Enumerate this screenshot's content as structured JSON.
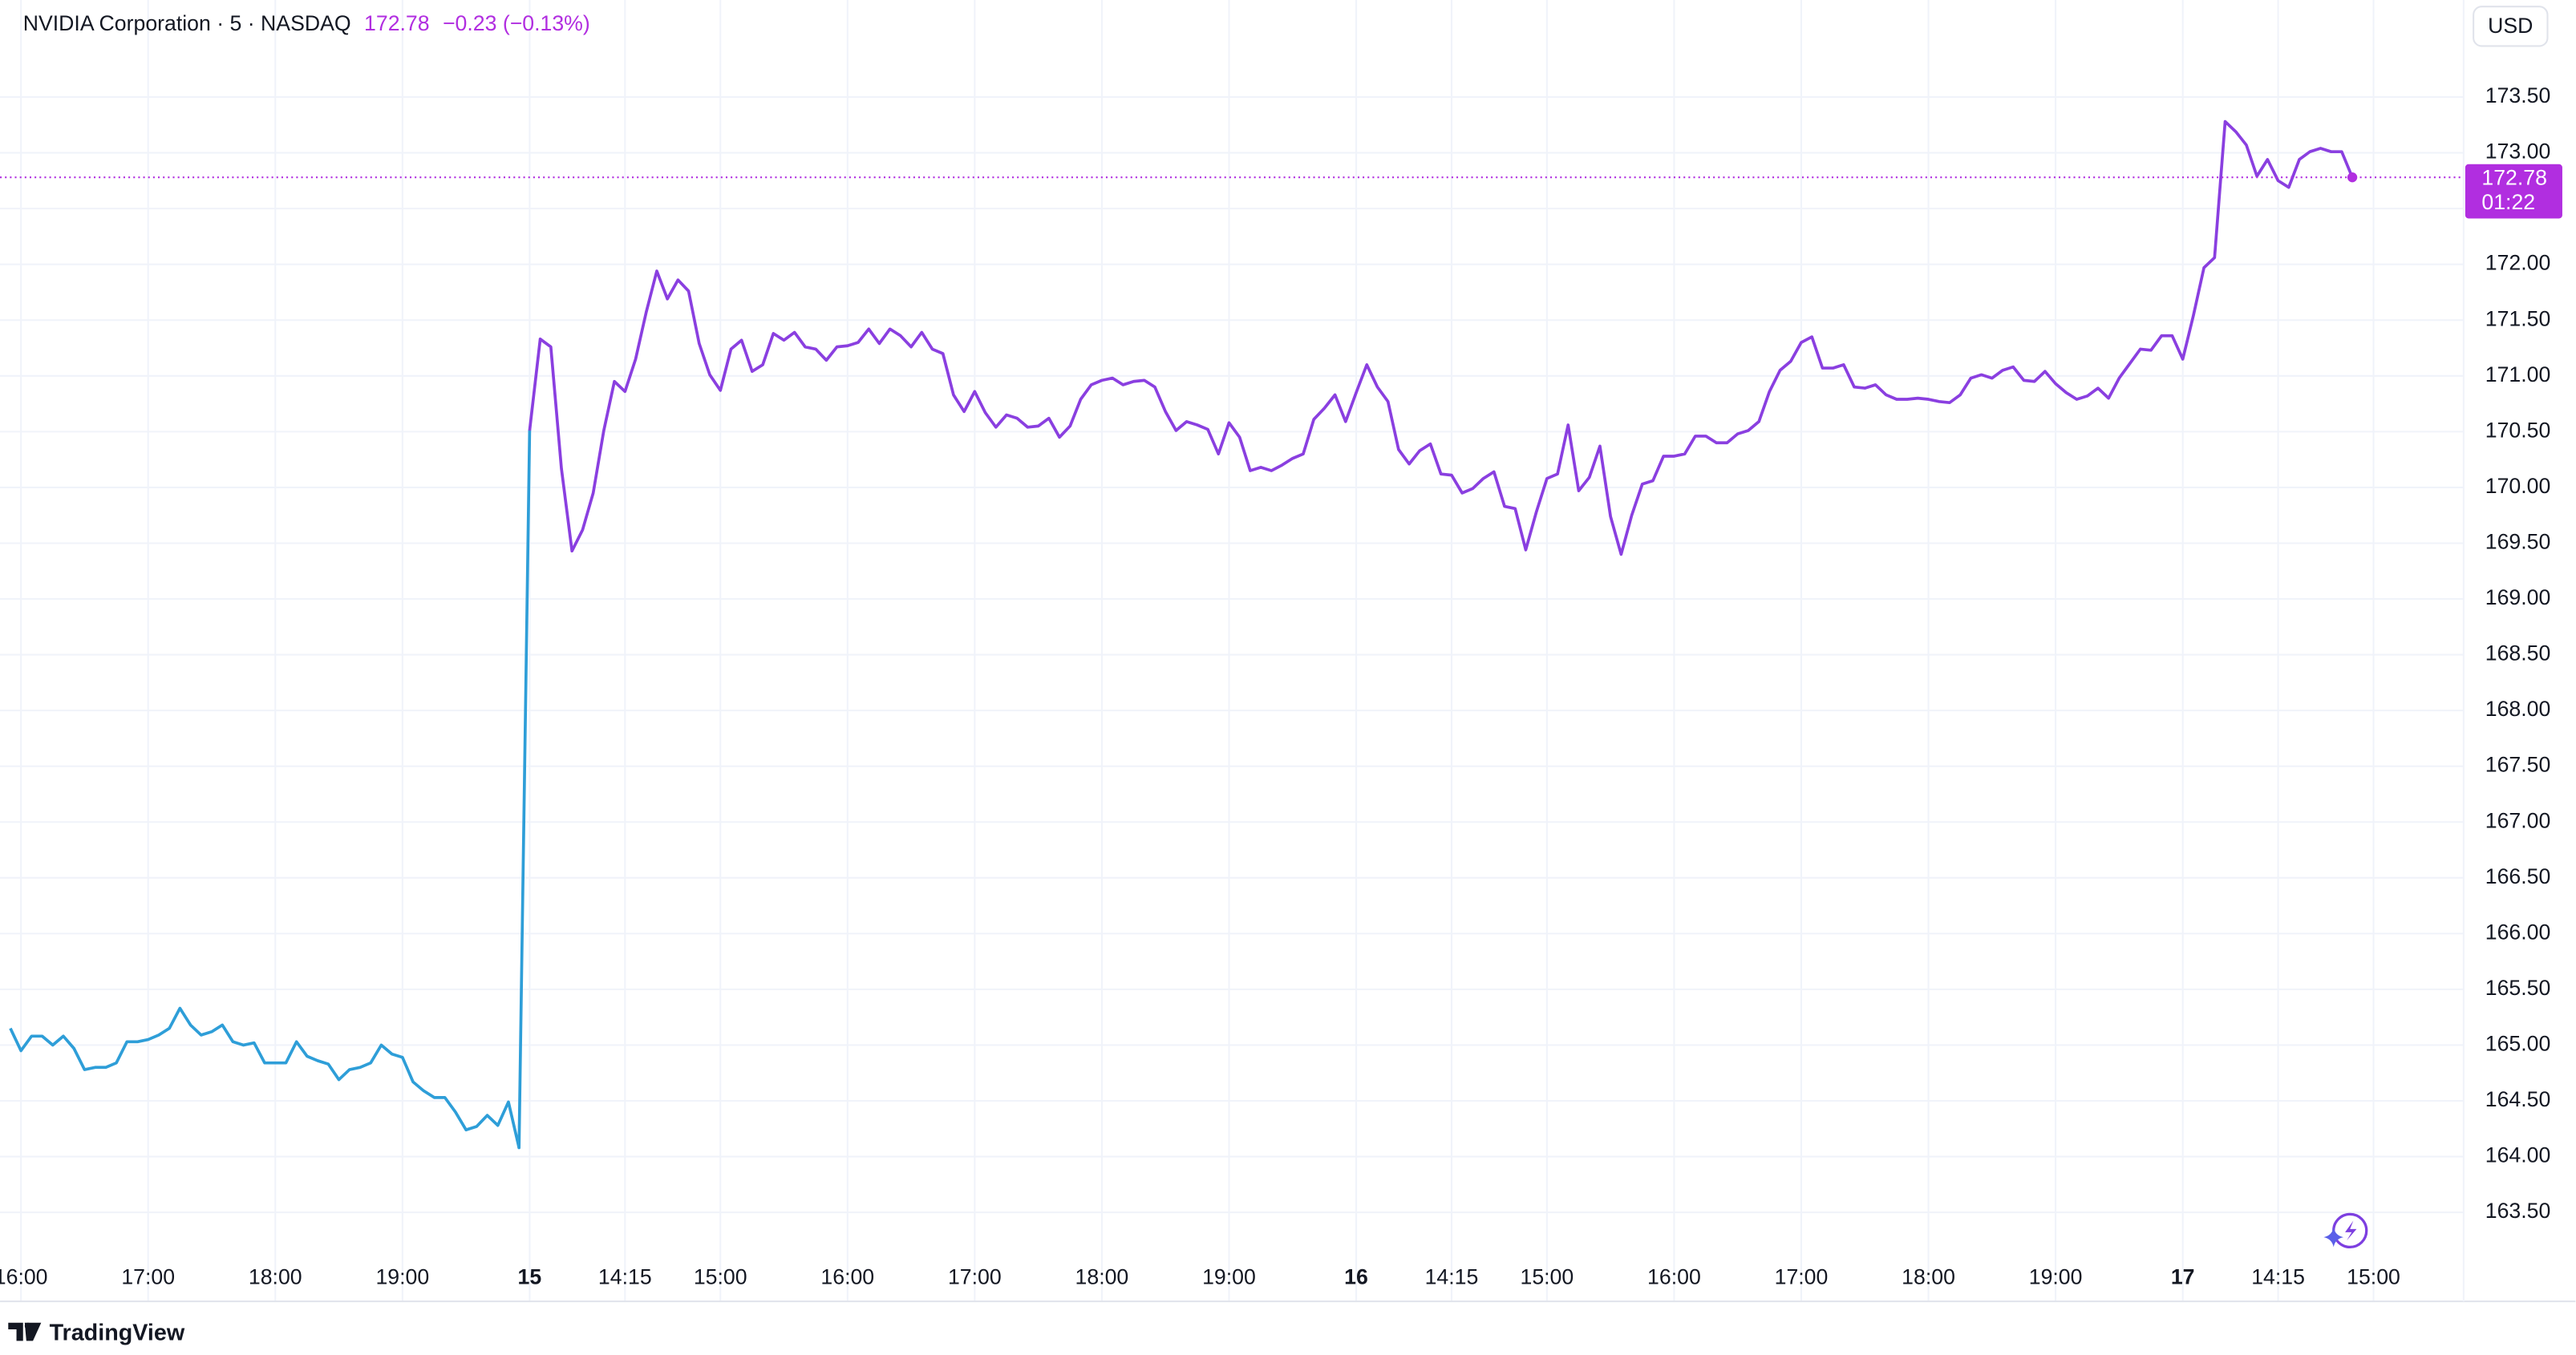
{
  "chart_data": {
    "type": "line",
    "title": "NVIDIA Corporation · 5 · NASDAQ",
    "last_price": 172.78,
    "change": "−0.23 (−0.13%)",
    "countdown": "01:22",
    "currency": "USD",
    "brand": "TradingView",
    "last_price_color": "#b12ee0",
    "grid": true,
    "xlim": [
      -0.2,
      231.5
    ],
    "ylim": [
      163.13,
      174.37
    ],
    "xticks": [
      {
        "value": 1,
        "label": "16:00"
      },
      {
        "value": 13,
        "label": "17:00"
      },
      {
        "value": 25,
        "label": "18:00"
      },
      {
        "value": 37,
        "label": "19:00"
      },
      {
        "value": 49,
        "label": "15"
      },
      {
        "value": 58,
        "label": "14:15"
      },
      {
        "value": 67,
        "label": "15:00"
      },
      {
        "value": 79,
        "label": "16:00"
      },
      {
        "value": 91,
        "label": "17:00"
      },
      {
        "value": 103,
        "label": "18:00"
      },
      {
        "value": 115,
        "label": "19:00"
      },
      {
        "value": 127,
        "label": "16"
      },
      {
        "value": 136,
        "label": "14:15"
      },
      {
        "value": 145,
        "label": "15:00"
      },
      {
        "value": 157,
        "label": "16:00"
      },
      {
        "value": 169,
        "label": "17:00"
      },
      {
        "value": 181,
        "label": "18:00"
      },
      {
        "value": 193,
        "label": "19:00"
      },
      {
        "value": 205,
        "label": "17"
      },
      {
        "value": 214,
        "label": "14:15"
      },
      {
        "value": 223,
        "label": "15:00"
      }
    ],
    "yticks": [
      {
        "value": 163.5,
        "label": "163.50"
      },
      {
        "value": 164,
        "label": "164.00"
      },
      {
        "value": 164.5,
        "label": "164.50"
      },
      {
        "value": 165,
        "label": "165.00"
      },
      {
        "value": 165.5,
        "label": "165.50"
      },
      {
        "value": 166,
        "label": "166.00"
      },
      {
        "value": 166.5,
        "label": "166.50"
      },
      {
        "value": 167,
        "label": "167.00"
      },
      {
        "value": 167.5,
        "label": "167.50"
      },
      {
        "value": 168,
        "label": "168.00"
      },
      {
        "value": 168.5,
        "label": "168.50"
      },
      {
        "value": 169,
        "label": "169.00"
      },
      {
        "value": 169.5,
        "label": "169.50"
      },
      {
        "value": 170,
        "label": "170.00"
      },
      {
        "value": 170.5,
        "label": "170.50"
      },
      {
        "value": 171,
        "label": "171.00"
      },
      {
        "value": 171.5,
        "label": "171.50"
      },
      {
        "value": 172,
        "label": "172.00"
      },
      {
        "value": 172.5,
        "label": "172.50"
      },
      {
        "value": 173,
        "label": "173.00"
      },
      {
        "value": 173.5,
        "label": "173.50"
      }
    ],
    "series": [
      {
        "color": "#2e9ed8",
        "values": [
          165.15,
          164.95,
          165.08,
          165.08,
          165.0,
          165.08,
          164.97,
          164.78,
          164.8,
          164.8,
          164.84,
          165.03,
          165.03,
          165.05,
          165.09,
          165.15,
          165.33,
          165.18,
          165.09,
          165.12,
          165.18,
          165.03,
          165.0,
          165.02,
          164.84,
          164.84,
          164.84,
          165.03,
          164.9,
          164.86,
          164.83,
          164.69,
          164.78,
          164.8,
          164.84,
          165.0,
          164.92,
          164.89,
          164.67,
          164.59,
          164.53,
          164.53,
          164.4,
          164.24,
          164.27,
          164.37,
          164.28,
          164.49,
          164.08,
          null,
          null,
          null,
          null,
          null,
          null,
          null,
          null,
          null,
          null,
          null,
          null,
          null,
          null,
          null,
          null,
          null,
          null,
          null,
          null,
          null,
          null,
          null,
          null,
          null,
          null,
          null,
          null,
          null,
          null,
          null,
          null,
          null,
          null,
          null,
          null,
          null,
          null,
          null,
          null,
          null,
          null,
          null,
          null,
          null,
          null,
          null,
          null,
          null,
          null,
          null,
          null,
          null,
          null,
          null,
          null,
          null,
          null,
          null,
          null,
          null,
          null,
          null,
          null,
          null,
          null,
          null,
          null,
          null,
          null,
          null,
          null,
          null,
          null,
          null,
          null,
          null,
          null,
          null,
          null,
          null,
          null,
          null,
          null,
          null,
          null,
          null,
          null,
          null,
          null,
          null,
          null,
          null,
          null,
          null,
          null,
          null,
          null,
          null,
          null,
          null,
          null,
          null,
          null,
          null,
          null,
          null,
          null,
          null,
          null,
          null,
          null,
          null,
          null,
          null,
          null,
          null,
          null,
          null,
          null,
          null,
          null,
          null,
          null,
          null,
          null,
          null,
          null,
          null,
          null,
          null,
          null,
          null,
          null,
          null,
          null,
          null,
          null,
          null,
          null,
          null,
          null,
          null,
          null,
          null,
          null,
          null,
          null,
          null,
          null,
          null,
          null,
          null,
          null,
          null,
          null,
          null,
          null,
          null,
          null,
          null,
          null,
          null,
          null,
          null,
          null,
          null,
          null,
          null,
          null,
          null,
          null,
          null
        ]
      },
      {
        "color": "#8a3fe0",
        "values": [
          null,
          null,
          null,
          null,
          null,
          null,
          null,
          null,
          null,
          null,
          null,
          null,
          null,
          null,
          null,
          null,
          null,
          null,
          null,
          null,
          null,
          null,
          null,
          null,
          null,
          null,
          null,
          null,
          null,
          null,
          null,
          null,
          null,
          null,
          null,
          null,
          null,
          null,
          null,
          null,
          null,
          null,
          null,
          null,
          null,
          null,
          null,
          null,
          null,
          170.51,
          171.33,
          171.26,
          170.17,
          169.43,
          169.62,
          169.95,
          170.51,
          170.95,
          170.86,
          171.15,
          171.57,
          171.94,
          171.69,
          171.86,
          171.76,
          171.29,
          171.01,
          170.87,
          171.24,
          171.32,
          171.04,
          171.1,
          171.38,
          171.32,
          171.39,
          171.26,
          171.24,
          171.14,
          171.26,
          171.27,
          171.3,
          171.42,
          171.29,
          171.42,
          171.36,
          171.26,
          171.39,
          171.24,
          171.2,
          170.83,
          170.68,
          170.86,
          170.67,
          170.54,
          170.65,
          170.62,
          170.54,
          170.55,
          170.62,
          170.45,
          170.55,
          170.79,
          170.92,
          170.96,
          170.98,
          170.92,
          170.95,
          170.96,
          170.9,
          170.68,
          170.51,
          170.59,
          170.56,
          170.52,
          170.3,
          170.58,
          170.45,
          170.15,
          170.18,
          170.15,
          170.2,
          170.26,
          170.3,
          170.61,
          170.71,
          170.83,
          170.59,
          170.85,
          171.1,
          170.9,
          170.77,
          170.34,
          170.21,
          170.33,
          170.39,
          170.12,
          170.11,
          169.95,
          169.99,
          170.08,
          170.14,
          169.83,
          169.81,
          169.44,
          169.78,
          170.08,
          170.12,
          170.56,
          169.97,
          170.09,
          170.37,
          169.74,
          169.4,
          169.75,
          170.03,
          170.06,
          170.28,
          170.28,
          170.3,
          170.46,
          170.46,
          170.4,
          170.4,
          170.48,
          170.51,
          170.59,
          170.86,
          171.05,
          171.13,
          171.3,
          171.35,
          171.07,
          171.07,
          171.1,
          170.9,
          170.89,
          170.92,
          170.83,
          170.79,
          170.79,
          170.8,
          170.79,
          170.77,
          170.76,
          170.83,
          170.98,
          171.01,
          170.98,
          171.05,
          171.08,
          170.96,
          170.95,
          171.04,
          170.93,
          170.85,
          170.79,
          170.82,
          170.89,
          170.8,
          170.98,
          171.11,
          171.24,
          171.23,
          171.36,
          171.36,
          171.15,
          171.54,
          171.97,
          172.06,
          173.28,
          173.19,
          173.07,
          172.79,
          172.94,
          172.75,
          172.69,
          172.94,
          173.01,
          173.04,
          173.01,
          173.01,
          172.78
        ]
      }
    ]
  }
}
